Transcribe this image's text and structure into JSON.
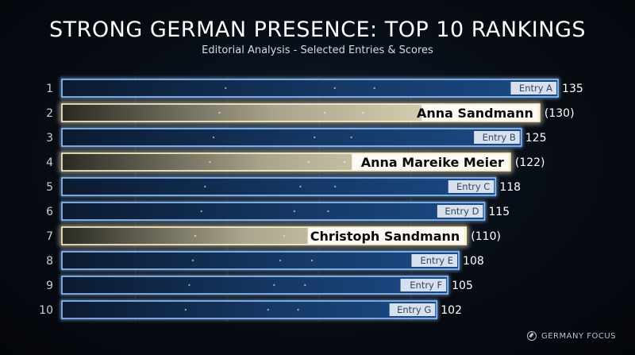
{
  "chart_data": {
    "type": "bar",
    "orientation": "horizontal",
    "title": "STRONG GERMAN PRESENCE: TOP 10 RANKINGS",
    "subtitle": "Editorial Analysis - Selected Entries & Scores",
    "xlim": [
      0,
      150
    ],
    "grid": true,
    "bars": [
      {
        "rank": "1",
        "label": "Entry A",
        "value": 135,
        "value_label": "135",
        "highlight": false
      },
      {
        "rank": "2",
        "label": "Anna Sandmann",
        "value": 130,
        "value_label": "(130)",
        "highlight": true
      },
      {
        "rank": "3",
        "label": "Entry B",
        "value": 125,
        "value_label": "125",
        "highlight": false
      },
      {
        "rank": "4",
        "label": "Anna Mareike Meier",
        "value": 122,
        "value_label": "(122)",
        "highlight": true
      },
      {
        "rank": "5",
        "label": "Entry C",
        "value": 118,
        "value_label": "118",
        "highlight": false
      },
      {
        "rank": "6",
        "label": "Entry D",
        "value": 115,
        "value_label": "115",
        "highlight": false
      },
      {
        "rank": "7",
        "label": "Christoph Sandmann",
        "value": 110,
        "value_label": "(110)",
        "highlight": true
      },
      {
        "rank": "8",
        "label": "Entry E",
        "value": 108,
        "value_label": "108",
        "highlight": false
      },
      {
        "rank": "9",
        "label": "Entry F",
        "value": 105,
        "value_label": "105",
        "highlight": false
      },
      {
        "rank": "10",
        "label": "Entry G",
        "value": 102,
        "value_label": "102",
        "highlight": false
      }
    ],
    "colors": {
      "normal_edge": "#8fc4ff",
      "normal_fill": "#1a4a86",
      "highlight_edge": "#fff4cf",
      "highlight_fill": "#f6ecc8",
      "rank_text": "#c9ced6"
    }
  },
  "brand": {
    "label": "GERMANY FOCUS",
    "icon": "compass-icon"
  }
}
